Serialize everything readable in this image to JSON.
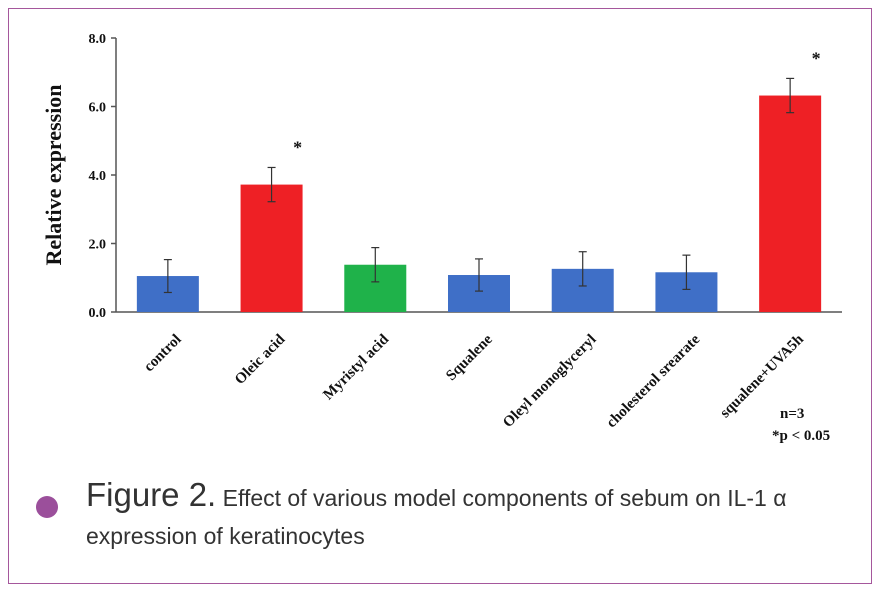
{
  "chart_data": {
    "type": "bar",
    "categories": [
      "control",
      "Oleic acid",
      "Myristyl acid",
      "Squalene",
      "Oleyl monoglyceryl",
      "cholesterol srearate",
      "squalene+UVA5h"
    ],
    "values": [
      1.05,
      3.72,
      1.38,
      1.08,
      1.26,
      1.16,
      6.32
    ],
    "errors": [
      0.48,
      0.5,
      0.5,
      0.47,
      0.5,
      0.5,
      0.5
    ],
    "colors": [
      "#3f6fc7",
      "#ee2025",
      "#1fb24a",
      "#3f6fc7",
      "#3f6fc7",
      "#3f6fc7",
      "#ee2025"
    ],
    "significant": [
      false,
      true,
      false,
      false,
      false,
      false,
      true
    ],
    "significance_marker": "*",
    "ylabel": "Relative expression",
    "xlabel": "",
    "ylim": [
      0,
      8
    ],
    "yticks": [
      "0.0",
      "2.0",
      "4.0",
      "6.0",
      "8.0"
    ],
    "ytick_values": [
      0,
      2,
      4,
      6,
      8
    ],
    "notes": [
      "n=3",
      "*p < 0.05"
    ]
  },
  "caption": {
    "label": "Figure 2.",
    "text": " Effect of various model components of sebum on IL-1 α expression of keratinocytes"
  },
  "colors": {
    "frame_border": "#a5579c",
    "bullet": "#9b4f9b"
  }
}
